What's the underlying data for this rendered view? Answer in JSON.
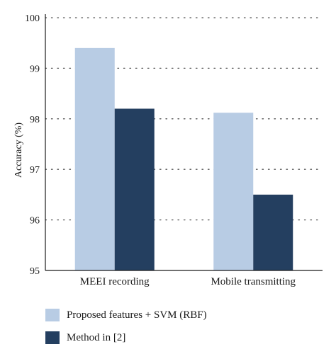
{
  "chart_data": {
    "type": "bar",
    "categories": [
      "MEEI recording",
      "Mobile transmitting"
    ],
    "series": [
      {
        "name": "Proposed features + SVM (RBF)",
        "values": [
          99.4,
          98.12
        ],
        "color": "#b8cce4"
      },
      {
        "name": "Method in [2]",
        "values": [
          98.2,
          96.5
        ],
        "color": "#243f60"
      }
    ],
    "ylabel": "Accuracy (%)",
    "xlabel": "",
    "ylim": [
      95,
      100
    ],
    "yticks": [
      "95",
      "96",
      "97",
      "98",
      "99",
      "100"
    ],
    "grid": "horizontal dotted",
    "legend_position": "bottom"
  }
}
